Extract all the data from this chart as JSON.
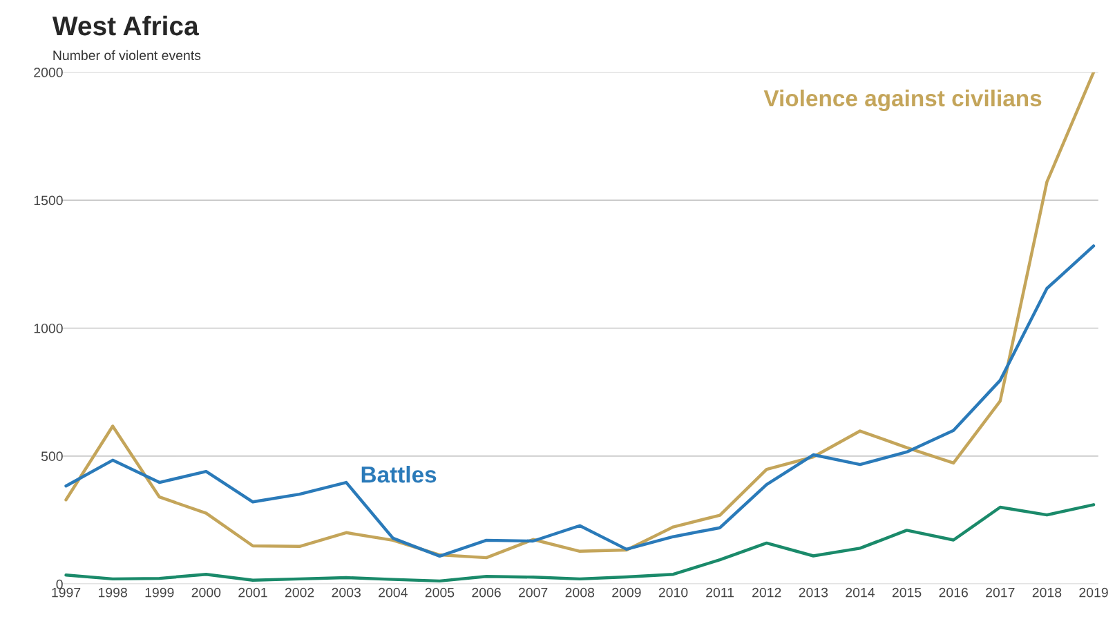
{
  "chart_data": {
    "type": "line",
    "title": "West Africa",
    "subtitle": "Number of violent events",
    "categories": [
      "1997",
      "1998",
      "1999",
      "2000",
      "2001",
      "2002",
      "2003",
      "2004",
      "2005",
      "2006",
      "2007",
      "2008",
      "2009",
      "2010",
      "2011",
      "2012",
      "2013",
      "2014",
      "2015",
      "2016",
      "2017",
      "2018",
      "2019"
    ],
    "series": [
      {
        "name": "Violence against civilians",
        "color": "#c4a55a",
        "values": [
          329,
          617,
          340,
          277,
          149,
          147,
          201,
          171,
          114,
          103,
          174,
          128,
          133,
          223,
          269,
          448,
          497,
          598,
          533,
          473,
          715,
          1571,
          2000
        ]
      },
      {
        "name": "Battles",
        "color": "#2a7ab9",
        "values": [
          383,
          484,
          397,
          440,
          321,
          351,
          397,
          179,
          109,
          171,
          168,
          228,
          136,
          185,
          220,
          389,
          505,
          467,
          516,
          600,
          796,
          1155,
          1321
        ]
      },
      {
        "color": "#1a8a6a",
        "values": [
          35,
          20,
          22,
          38,
          15,
          20,
          25,
          18,
          12,
          30,
          27,
          20,
          28,
          38,
          95,
          160,
          110,
          140,
          210,
          172,
          300,
          270,
          310
        ]
      }
    ],
    "ylim": [
      0,
      2000
    ],
    "yticks": [
      0,
      500,
      1000,
      1500,
      2000
    ],
    "grid": "y",
    "legend": false,
    "marker": "none",
    "line_style": "solid"
  }
}
